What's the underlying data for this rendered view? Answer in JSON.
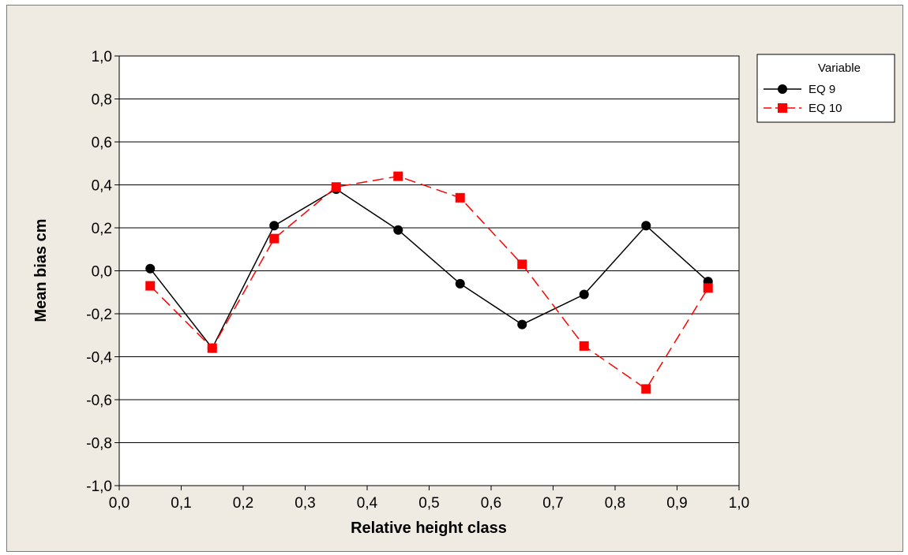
{
  "chart_data": {
    "type": "line",
    "xlabel": "Relative height class",
    "ylabel": "Mean bias cm",
    "xlim": [
      0.0,
      1.0
    ],
    "ylim": [
      -1.0,
      1.0
    ],
    "x_ticks": [
      "0,0",
      "0,1",
      "0,2",
      "0,3",
      "0,4",
      "0,5",
      "0,6",
      "0,7",
      "0,8",
      "0,9",
      "1,0"
    ],
    "y_ticks": [
      "1,0",
      "0,8",
      "0,6",
      "0,4",
      "0,2",
      "0,0",
      "-0,2",
      "-0,4",
      "-0,6",
      "-0,8",
      "-1,0"
    ],
    "grid": "horizontal",
    "legend": {
      "title": "Variable",
      "placement": "top-right outside plot"
    },
    "series": [
      {
        "name": "EQ 9",
        "color": "#000000",
        "marker": "circle",
        "line": "solid",
        "x": [
          0.05,
          0.15,
          0.25,
          0.35,
          0.45,
          0.55,
          0.65,
          0.75,
          0.85,
          0.95
        ],
        "y": [
          0.01,
          -0.36,
          0.21,
          0.38,
          0.19,
          -0.06,
          -0.25,
          -0.11,
          0.21,
          -0.05
        ]
      },
      {
        "name": "EQ 10",
        "color": "#ff0000",
        "marker": "square",
        "line": "dashed",
        "x": [
          0.05,
          0.15,
          0.25,
          0.35,
          0.45,
          0.55,
          0.65,
          0.75,
          0.85,
          0.95
        ],
        "y": [
          -0.07,
          -0.36,
          0.15,
          0.39,
          0.44,
          0.34,
          0.03,
          -0.35,
          -0.55,
          -0.08
        ]
      }
    ]
  }
}
